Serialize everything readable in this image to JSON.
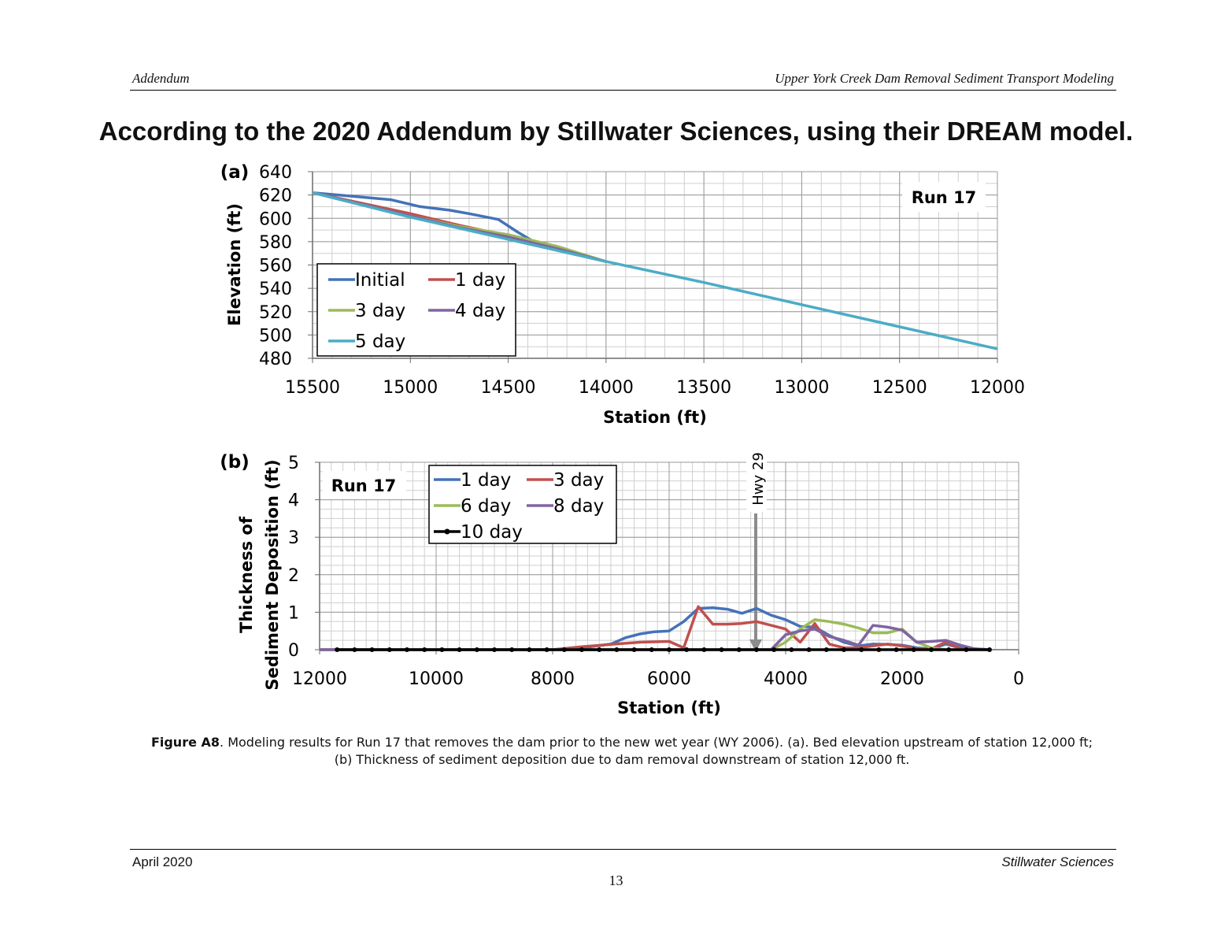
{
  "header": {
    "left": "Addendum",
    "right": "Upper York Creek Dam Removal Sediment Transport Modeling"
  },
  "headline": "According to the 2020 Addendum by Stillwater Sciences, using their DREAM model.",
  "caption": {
    "label": "Figure A8",
    "text": ". Modeling results for Run 17 that removes the dam prior to the new wet year (WY 2006).  (a). Bed elevation upstream of station 12,000 ft; (b) Thickness of sediment deposition due to dam removal downstream of station 12,000 ft."
  },
  "footer": {
    "left": "April 2020",
    "right": "Stillwater Sciences",
    "page": "13"
  },
  "chart_data": [
    {
      "type": "line",
      "panel_label": "(a)",
      "run_label": "Run 17",
      "xlabel": "Station (ft)",
      "ylabel": "Elevation (ft)",
      "xlim": [
        15500,
        12000
      ],
      "x_reversed": true,
      "ylim": [
        480,
        640
      ],
      "xticks": [
        15500,
        15000,
        14500,
        14000,
        13500,
        13000,
        12500,
        12000
      ],
      "yticks": [
        480,
        500,
        520,
        540,
        560,
        580,
        600,
        620,
        640
      ],
      "grid": true,
      "legend_position": "lower-left",
      "series": [
        {
          "name": "Initial",
          "color": "#4572b8",
          "points": [
            [
              15500,
              622
            ],
            [
              15300,
              619
            ],
            [
              15100,
              616
            ],
            [
              14950,
              610
            ],
            [
              14800,
              607
            ],
            [
              14700,
              604
            ],
            [
              14550,
              599
            ],
            [
              14450,
              588
            ],
            [
              14350,
              578
            ],
            [
              14200,
              571
            ],
            [
              14000,
              563
            ]
          ]
        },
        {
          "name": "1 day",
          "color": "#c0504d",
          "points": [
            [
              15500,
              622
            ],
            [
              15250,
              613
            ],
            [
              15000,
              604
            ],
            [
              14750,
              594
            ],
            [
              14500,
              585
            ],
            [
              14250,
              574
            ],
            [
              14000,
              563
            ]
          ]
        },
        {
          "name": "3 day",
          "color": "#9bbb59",
          "points": [
            [
              15500,
              622
            ],
            [
              15250,
              612
            ],
            [
              15000,
              602
            ],
            [
              14750,
              593
            ],
            [
              14500,
              586
            ],
            [
              14250,
              576
            ],
            [
              14000,
              563
            ]
          ]
        },
        {
          "name": "4 day",
          "color": "#8064a2",
          "points": [
            [
              15500,
              622
            ],
            [
              15250,
              612
            ],
            [
              15000,
              602
            ],
            [
              14750,
              592
            ],
            [
              14500,
              584
            ],
            [
              14250,
              574
            ],
            [
              14000,
              563
            ]
          ]
        },
        {
          "name": "5 day",
          "color": "#4bacc6",
          "points": [
            [
              15500,
              622
            ],
            [
              15000,
              601
            ],
            [
              14500,
              582
            ],
            [
              14000,
              563
            ],
            [
              13500,
              545
            ],
            [
              13000,
              526
            ],
            [
              12500,
              507
            ],
            [
              12000,
              488
            ]
          ]
        }
      ]
    },
    {
      "type": "line",
      "panel_label": "(b)",
      "run_label": "Run 17",
      "xlabel": "Station (ft)",
      "ylabel_line1": "Thickness of",
      "ylabel_line2": "Sediment Deposition (ft)",
      "xlim": [
        12000,
        0
      ],
      "x_reversed": true,
      "ylim": [
        0,
        5
      ],
      "xticks": [
        12000,
        10000,
        8000,
        6000,
        4000,
        2000,
        0
      ],
      "yticks": [
        0,
        1,
        2,
        3,
        4,
        5
      ],
      "grid": true,
      "legend_position": "top-left",
      "annotation": {
        "text": "Hwy 29",
        "x": 4500
      },
      "series": [
        {
          "name": "1 day",
          "color": "#4572b8",
          "points": [
            [
              12000,
              0
            ],
            [
              8000,
              0
            ],
            [
              7500,
              0.05
            ],
            [
              7000,
              0.15
            ],
            [
              6750,
              0.32
            ],
            [
              6500,
              0.42
            ],
            [
              6250,
              0.48
            ],
            [
              6000,
              0.5
            ],
            [
              5750,
              0.75
            ],
            [
              5500,
              1.1
            ],
            [
              5250,
              1.12
            ],
            [
              5000,
              1.08
            ],
            [
              4750,
              0.97
            ],
            [
              4500,
              1.1
            ],
            [
              4250,
              0.92
            ],
            [
              4000,
              0.8
            ],
            [
              3750,
              0.62
            ],
            [
              3500,
              0.6
            ],
            [
              3250,
              0.38
            ],
            [
              3000,
              0.2
            ],
            [
              2750,
              0.1
            ],
            [
              2500,
              0.15
            ],
            [
              2250,
              0.14
            ],
            [
              2000,
              0.12
            ],
            [
              1750,
              0.05
            ],
            [
              1500,
              0.02
            ],
            [
              1250,
              0.15
            ],
            [
              1000,
              0.05
            ],
            [
              500,
              0
            ]
          ]
        },
        {
          "name": "3 day",
          "color": "#c0504d",
          "points": [
            [
              12000,
              0
            ],
            [
              8000,
              0
            ],
            [
              7500,
              0.08
            ],
            [
              7000,
              0.14
            ],
            [
              6500,
              0.2
            ],
            [
              6000,
              0.22
            ],
            [
              5750,
              0.05
            ],
            [
              5500,
              1.15
            ],
            [
              5250,
              0.68
            ],
            [
              5000,
              0.68
            ],
            [
              4750,
              0.7
            ],
            [
              4500,
              0.75
            ],
            [
              4250,
              0.65
            ],
            [
              4000,
              0.55
            ],
            [
              3750,
              0.2
            ],
            [
              3500,
              0.7
            ],
            [
              3250,
              0.15
            ],
            [
              3000,
              0.05
            ],
            [
              2750,
              0.05
            ],
            [
              2500,
              0.1
            ],
            [
              2250,
              0.15
            ],
            [
              2000,
              0.1
            ],
            [
              1750,
              0.02
            ],
            [
              1500,
              0.02
            ],
            [
              1250,
              0.2
            ],
            [
              1000,
              0.02
            ],
            [
              500,
              0
            ]
          ]
        },
        {
          "name": "6 day",
          "color": "#9bbb59",
          "points": [
            [
              12000,
              0
            ],
            [
              4250,
              0
            ],
            [
              4000,
              0.2
            ],
            [
              3750,
              0.55
            ],
            [
              3500,
              0.8
            ],
            [
              3250,
              0.75
            ],
            [
              3000,
              0.68
            ],
            [
              2750,
              0.58
            ],
            [
              2500,
              0.45
            ],
            [
              2250,
              0.45
            ],
            [
              2000,
              0.55
            ],
            [
              1750,
              0.2
            ],
            [
              1500,
              0.05
            ],
            [
              1250,
              0
            ],
            [
              500,
              0
            ]
          ]
        },
        {
          "name": "8 day",
          "color": "#8064a2",
          "points": [
            [
              12000,
              0
            ],
            [
              4250,
              0
            ],
            [
              4000,
              0.4
            ],
            [
              3750,
              0.5
            ],
            [
              3500,
              0.55
            ],
            [
              3250,
              0.35
            ],
            [
              3000,
              0.25
            ],
            [
              2750,
              0.12
            ],
            [
              2500,
              0.65
            ],
            [
              2250,
              0.6
            ],
            [
              2000,
              0.52
            ],
            [
              1750,
              0.2
            ],
            [
              1500,
              0.22
            ],
            [
              1250,
              0.25
            ],
            [
              1000,
              0.12
            ],
            [
              750,
              0.02
            ],
            [
              500,
              0
            ]
          ]
        },
        {
          "name": "10 day",
          "color": "#000000",
          "markers": true,
          "points": [
            [
              11700,
              0
            ],
            [
              11400,
              0
            ],
            [
              11100,
              0
            ],
            [
              10800,
              0
            ],
            [
              10500,
              0
            ],
            [
              10200,
              0
            ],
            [
              9900,
              0
            ],
            [
              9600,
              0
            ],
            [
              9300,
              0
            ],
            [
              9000,
              0
            ],
            [
              8700,
              0
            ],
            [
              8400,
              0
            ],
            [
              8100,
              0
            ],
            [
              7800,
              0
            ],
            [
              7500,
              0
            ],
            [
              7200,
              0
            ],
            [
              6900,
              0
            ],
            [
              6600,
              0
            ],
            [
              6300,
              0
            ],
            [
              6000,
              0
            ],
            [
              5700,
              0
            ],
            [
              5400,
              0
            ],
            [
              5100,
              0
            ],
            [
              4800,
              0
            ],
            [
              4500,
              0
            ],
            [
              4200,
              0
            ],
            [
              3900,
              0
            ],
            [
              3600,
              0
            ],
            [
              3300,
              0
            ],
            [
              3000,
              0
            ],
            [
              2700,
              0
            ],
            [
              2400,
              0
            ],
            [
              2100,
              0
            ],
            [
              1800,
              0
            ],
            [
              1500,
              0
            ],
            [
              1200,
              0
            ],
            [
              900,
              0
            ],
            [
              500,
              0
            ]
          ]
        }
      ]
    }
  ]
}
